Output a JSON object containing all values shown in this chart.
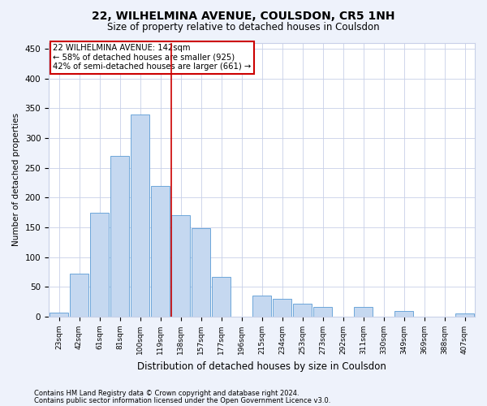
{
  "title": "22, WILHELMINA AVENUE, COULSDON, CR5 1NH",
  "subtitle": "Size of property relative to detached houses in Coulsdon",
  "xlabel": "Distribution of detached houses by size in Coulsdon",
  "ylabel": "Number of detached properties",
  "categories": [
    "23sqm",
    "42sqm",
    "61sqm",
    "81sqm",
    "100sqm",
    "119sqm",
    "138sqm",
    "157sqm",
    "177sqm",
    "196sqm",
    "215sqm",
    "234sqm",
    "253sqm",
    "273sqm",
    "292sqm",
    "311sqm",
    "330sqm",
    "349sqm",
    "369sqm",
    "388sqm",
    "407sqm"
  ],
  "values": [
    7,
    72,
    175,
    270,
    340,
    220,
    170,
    148,
    67,
    0,
    35,
    30,
    22,
    17,
    0,
    17,
    0,
    10,
    0,
    0,
    5
  ],
  "bar_color": "#c5d8f0",
  "bar_edge_color": "#5b9bd5",
  "marker_label": "22 WILHELMINA AVENUE: 142sqm",
  "annotation_line1": "← 58% of detached houses are smaller (925)",
  "annotation_line2": "42% of semi-detached houses are larger (661) →",
  "vline_color": "#cc0000",
  "annotation_box_edge": "#cc0000",
  "ylim": [
    0,
    460
  ],
  "yticks": [
    0,
    50,
    100,
    150,
    200,
    250,
    300,
    350,
    400,
    450
  ],
  "footnote1": "Contains HM Land Registry data © Crown copyright and database right 2024.",
  "footnote2": "Contains public sector information licensed under the Open Government Licence v3.0.",
  "bg_color": "#eef2fb",
  "plot_bg_color": "#ffffff",
  "grid_color": "#c8d0e8",
  "vline_bin_index": 6
}
